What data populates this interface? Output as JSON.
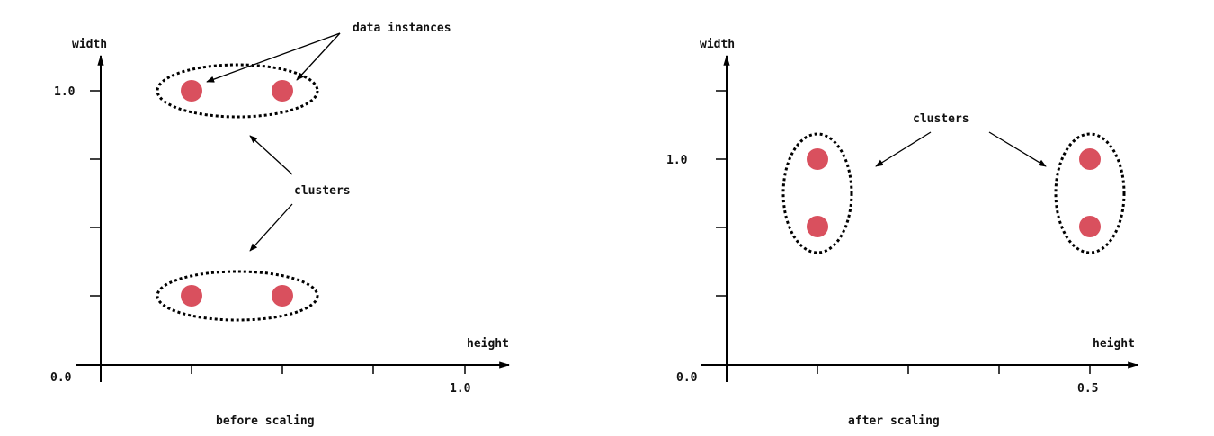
{
  "panels": {
    "before": {
      "caption": "before scaling",
      "y_axis_label": "width",
      "x_axis_label": "height",
      "origin_label": "0.0",
      "y_tick_label": "1.0",
      "x_tick_label": "1.0",
      "data_instances_label": "data instances",
      "clusters_label": "clusters"
    },
    "after": {
      "caption": "after scaling",
      "y_axis_label": "width",
      "x_axis_label": "height",
      "origin_label": "0.0",
      "y_tick_label": "1.0",
      "x_tick_label": "0.5",
      "clusters_label": "clusters"
    }
  },
  "colors": {
    "data_point": "#d9505e",
    "ink": "#000000"
  }
}
